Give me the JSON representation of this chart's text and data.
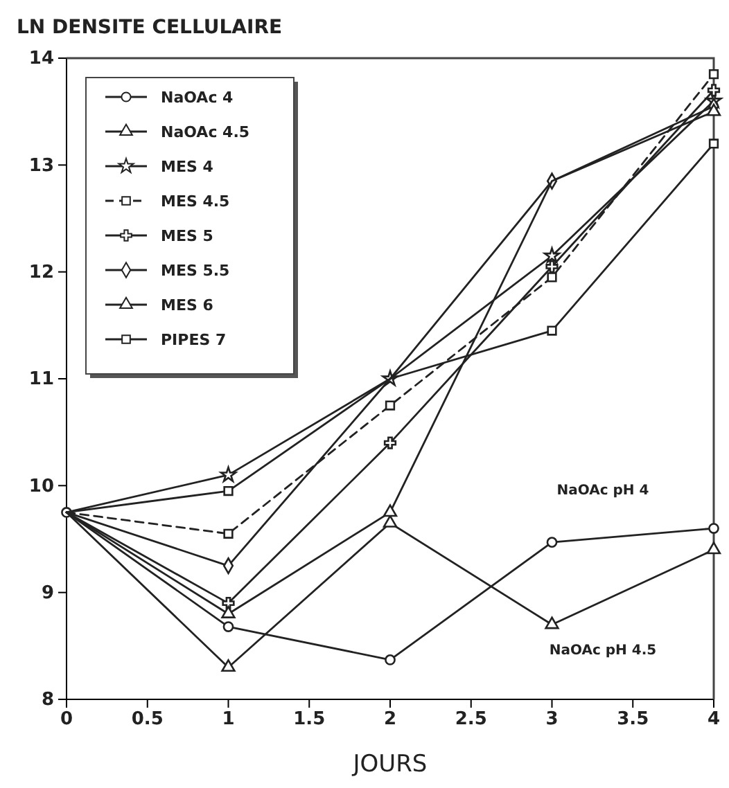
{
  "chart_data": {
    "type": "line",
    "ylabel": "LN DENSITE CELLULAIRE",
    "xlabel": "JOURS",
    "x": [
      0,
      1,
      2,
      3,
      4
    ],
    "xlim": [
      0,
      4
    ],
    "xticks": [
      0,
      {
        "value": 0.5,
        "label": "0.5"
      },
      1,
      {
        "value": 1.5,
        "label": "1.5"
      },
      2,
      {
        "value": 2.5,
        "label": "2.5"
      },
      3,
      {
        "value": 3.5,
        "label": "3.5"
      },
      4
    ],
    "ylim": [
      8,
      14
    ],
    "yticks": [
      8,
      9,
      10,
      11,
      12,
      13,
      14
    ],
    "grid": false,
    "legend": "top left",
    "series": [
      {
        "name": "NaOAc 4",
        "color": "#222222",
        "marker": "circle",
        "values": [
          9.75,
          8.68,
          8.37,
          9.47,
          9.6
        ]
      },
      {
        "name": "NaOAc 4.5",
        "color": "#222222",
        "marker": "triangle",
        "values": [
          9.75,
          8.3,
          9.65,
          8.7,
          9.4
        ]
      },
      {
        "name": "MES 4",
        "color": "#222222",
        "marker": "star",
        "values": [
          9.75,
          10.1,
          11.0,
          12.15,
          13.6
        ]
      },
      {
        "name": "MES 4.5",
        "color": "#222222",
        "marker": "square",
        "line_style": "dashed",
        "values": [
          9.75,
          9.55,
          10.75,
          11.95,
          13.85
        ]
      },
      {
        "name": "MES 5",
        "color": "#222222",
        "marker": "cross",
        "values": [
          9.75,
          8.9,
          10.4,
          12.05,
          13.7
        ]
      },
      {
        "name": "MES 5.5",
        "color": "#222222",
        "marker": "diamond",
        "values": [
          9.75,
          9.25,
          11.0,
          12.85,
          13.55
        ]
      },
      {
        "name": "MES 6",
        "color": "#222222",
        "marker": "triangle",
        "values": [
          9.75,
          8.8,
          9.75,
          12.85,
          13.5
        ]
      },
      {
        "name": "PIPES 7",
        "color": "#222222",
        "marker": "square",
        "values": [
          9.75,
          9.95,
          11.0,
          11.45,
          13.2
        ]
      }
    ],
    "annotations": [
      "NaOAc pH 4",
      "NaOAc pH 4.5"
    ]
  }
}
